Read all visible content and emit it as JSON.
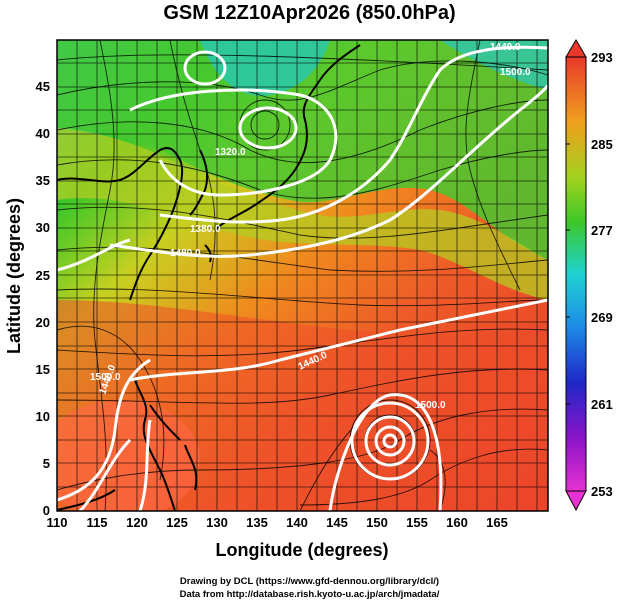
{
  "title": "GSM 12Z10Apr2026 (850.0hPa)",
  "x_axis": {
    "label": "Longitude (degrees)",
    "ticks": [
      "110",
      "115",
      "120",
      "125",
      "130",
      "135",
      "140",
      "145",
      "150",
      "155",
      "160",
      "165"
    ]
  },
  "y_axis": {
    "label": "Latitude  (degrees)",
    "ticks": [
      "0",
      "5",
      "10",
      "15",
      "20",
      "25",
      "30",
      "35",
      "40",
      "45"
    ]
  },
  "colorbar": {
    "ticks": [
      "253",
      "261",
      "269",
      "277",
      "285",
      "293"
    ]
  },
  "contour_labels": [
    "1320.0",
    "1440.0",
    "1500.0",
    "1500.0",
    "1500.0",
    "1380.0",
    "1440.0",
    "1480.0",
    "1440.0"
  ],
  "footer": {
    "line1": "Drawing by DCL (https://www.gfd-dennou.org/library/dcl/)",
    "line2": "Data from http://database.rish.kyoto-u.ac.jp/arch/jmadata/"
  },
  "colors": {
    "warm": "#e8392a",
    "orange": "#f08a1e",
    "yellow": "#c8d020",
    "green": "#3cc828",
    "cyan": "#1ec8d0",
    "blue": "#1e5ae6",
    "magenta": "#e63cd2",
    "land": "#ff6a50"
  }
}
